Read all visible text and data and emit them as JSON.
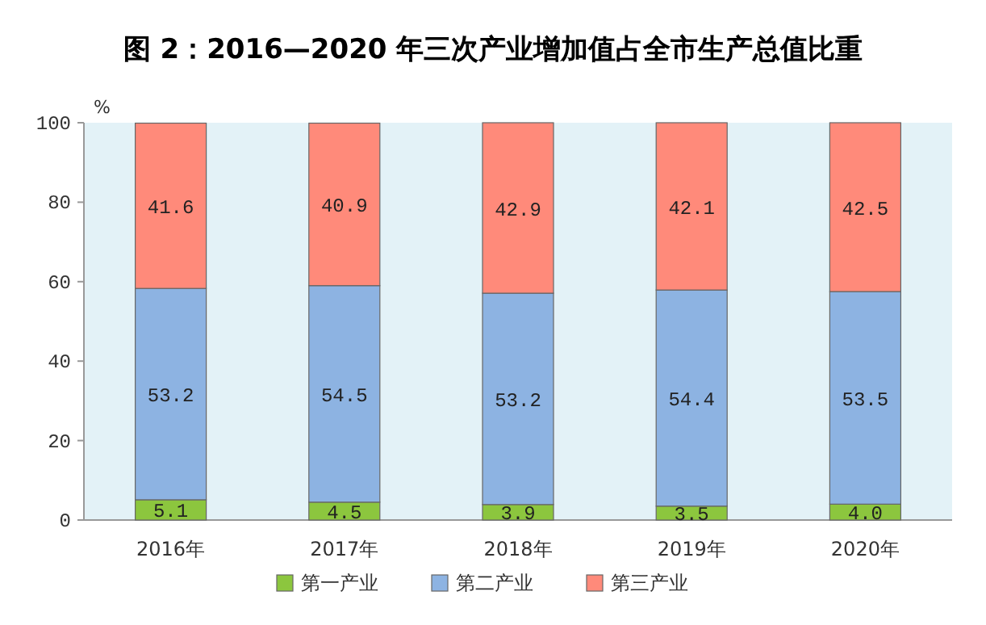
{
  "chart_data": {
    "type": "bar",
    "title": "图 2：2016—2020 年三次产业增加值占全市生产总值比重",
    "ylabel": "%",
    "categories": [
      "2016年",
      "2017年",
      "2018年",
      "2019年",
      "2020年"
    ],
    "stacked": true,
    "ylim": [
      0,
      100
    ],
    "yticks": [
      0,
      20,
      40,
      60,
      80,
      100
    ],
    "data_labels": true,
    "legend": "bottom",
    "series": [
      {
        "name": "第一产业",
        "color": "#8cc63e",
        "values": [
          5.1,
          4.5,
          3.9,
          3.5,
          4.0
        ],
        "value_labels": [
          "5.1",
          "4.5",
          "3.9",
          "3.5",
          "4.0"
        ]
      },
      {
        "name": "第二产业",
        "color": "#8db3e2",
        "values": [
          53.2,
          54.5,
          53.2,
          54.4,
          53.5
        ]
      },
      {
        "name": "第三产业",
        "color": "#ff8a7a",
        "values": [
          41.6,
          40.9,
          42.9,
          42.1,
          42.5
        ]
      }
    ]
  }
}
